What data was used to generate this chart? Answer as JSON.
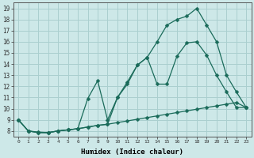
{
  "xlabel": "Humidex (Indice chaleur)",
  "bg_color": "#cde8e8",
  "grid_color": "#aacfcf",
  "line_color": "#1a6b5a",
  "xlim": [
    -0.5,
    23.5
  ],
  "ylim": [
    7.5,
    19.5
  ],
  "xticks": [
    0,
    1,
    2,
    3,
    4,
    5,
    6,
    7,
    8,
    9,
    10,
    11,
    12,
    13,
    14,
    15,
    16,
    17,
    18,
    19,
    20,
    21,
    22,
    23
  ],
  "yticks": [
    8,
    9,
    10,
    11,
    12,
    13,
    14,
    15,
    16,
    17,
    18,
    19
  ],
  "line1_x": [
    0,
    1,
    2,
    3,
    4,
    5,
    6,
    7,
    8,
    9,
    10,
    11,
    12,
    13,
    14,
    15,
    16,
    17,
    18,
    19,
    20,
    21,
    22,
    23
  ],
  "line1_y": [
    9.0,
    8.0,
    7.9,
    7.85,
    8.0,
    8.1,
    8.2,
    8.35,
    8.5,
    8.6,
    8.75,
    8.9,
    9.05,
    9.2,
    9.35,
    9.5,
    9.65,
    9.8,
    9.95,
    10.1,
    10.25,
    10.4,
    10.55,
    10.1
  ],
  "line2_x": [
    0,
    1,
    2,
    3,
    4,
    5,
    6,
    7,
    8,
    9,
    10,
    11,
    12,
    13,
    14,
    15,
    16,
    17,
    18,
    19,
    20,
    21,
    22,
    23
  ],
  "line2_y": [
    9.0,
    8.0,
    7.85,
    7.85,
    8.0,
    8.1,
    8.2,
    10.9,
    12.5,
    9.0,
    11.0,
    12.2,
    13.9,
    14.6,
    16.0,
    17.5,
    18.0,
    18.3,
    19.0,
    17.5,
    16.0,
    13.0,
    11.5,
    10.1
  ],
  "line3_x": [
    0,
    1,
    2,
    3,
    4,
    5,
    6,
    7,
    8,
    9,
    10,
    11,
    12,
    13,
    14,
    15,
    16,
    17,
    18,
    19,
    20,
    21,
    22,
    23
  ],
  "line3_y": [
    9.0,
    8.0,
    7.85,
    7.85,
    8.0,
    8.1,
    8.2,
    8.35,
    8.5,
    8.6,
    11.0,
    12.4,
    13.9,
    14.6,
    12.2,
    12.2,
    14.7,
    15.9,
    16.0,
    14.8,
    13.0,
    11.5,
    10.1,
    10.1
  ]
}
